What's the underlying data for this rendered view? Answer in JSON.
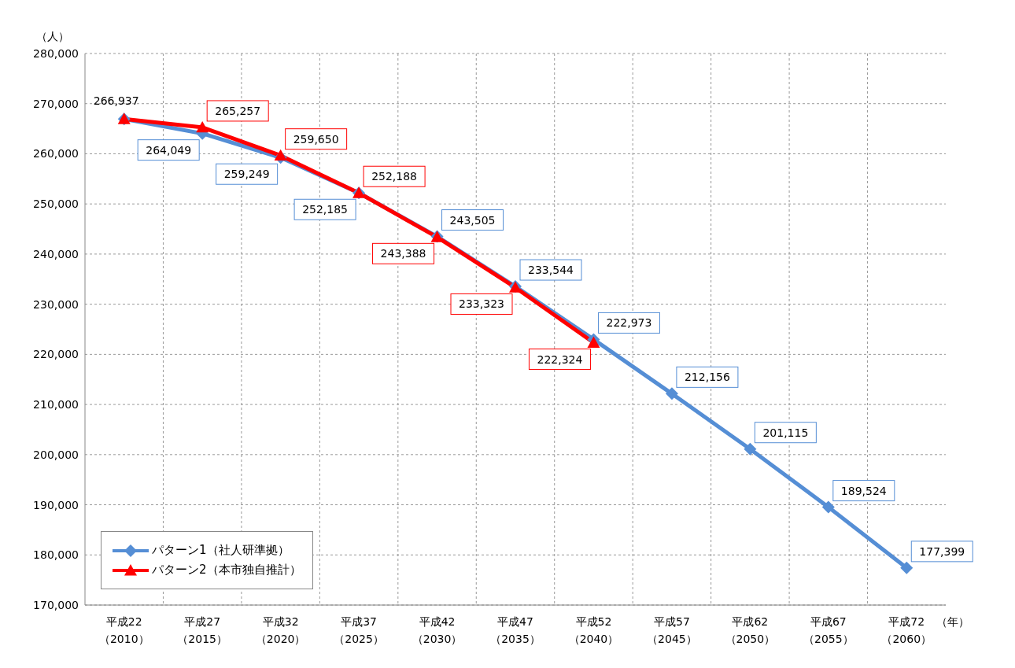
{
  "chart_data": {
    "type": "line",
    "xlabel": "（年）",
    "ylabel": "（人）",
    "categories": [
      "平成22\n（2010）",
      "平成27\n（2015）",
      "平成32\n（2020）",
      "平成37\n（2025）",
      "平成42\n（2030）",
      "平成47\n（2035）",
      "平成52\n（2040）",
      "平成57\n（2045）",
      "平成62\n（2050）",
      "平成67\n（2055）",
      "平成72\n（2060）"
    ],
    "series": [
      {
        "name": "パターン1（社人研準拠）",
        "color": "#558ed5",
        "marker": "diamond",
        "values": [
          266937,
          264049,
          259249,
          252185,
          243505,
          233544,
          222973,
          212156,
          201115,
          189524,
          177399
        ],
        "value_labels": [
          "266,937",
          "264,049",
          "259,249",
          "252,185",
          "243,505",
          "233,544",
          "222,973",
          "212,156",
          "201,115",
          "189,524",
          "177,399"
        ]
      },
      {
        "name": "パターン2（本市独自推計）",
        "color": "#ff0000",
        "marker": "triangle",
        "values": [
          266937,
          265257,
          259650,
          252188,
          243388,
          233323,
          222324,
          null,
          null,
          null,
          null
        ],
        "value_labels": [
          null,
          "265,257",
          "259,650",
          "252,188",
          "243,388",
          "233,323",
          "222,324",
          null,
          null,
          null,
          null
        ]
      }
    ],
    "ylim": [
      170000,
      280000
    ],
    "yticks": [
      {
        "value": 170000,
        "label": "170,000"
      },
      {
        "value": 180000,
        "label": "180,000"
      },
      {
        "value": 190000,
        "label": "190,000"
      },
      {
        "value": 200000,
        "label": "200,000"
      },
      {
        "value": 210000,
        "label": "210,000"
      },
      {
        "value": 220000,
        "label": "220,000"
      },
      {
        "value": 230000,
        "label": "230,000"
      },
      {
        "value": 240000,
        "label": "240,000"
      },
      {
        "value": 250000,
        "label": "250,000"
      },
      {
        "value": 260000,
        "label": "260,000"
      },
      {
        "value": 270000,
        "label": "270,000"
      },
      {
        "value": 280000,
        "label": "280,000"
      }
    ],
    "grid": true,
    "legend": "bottom left",
    "line_style": "solid"
  }
}
